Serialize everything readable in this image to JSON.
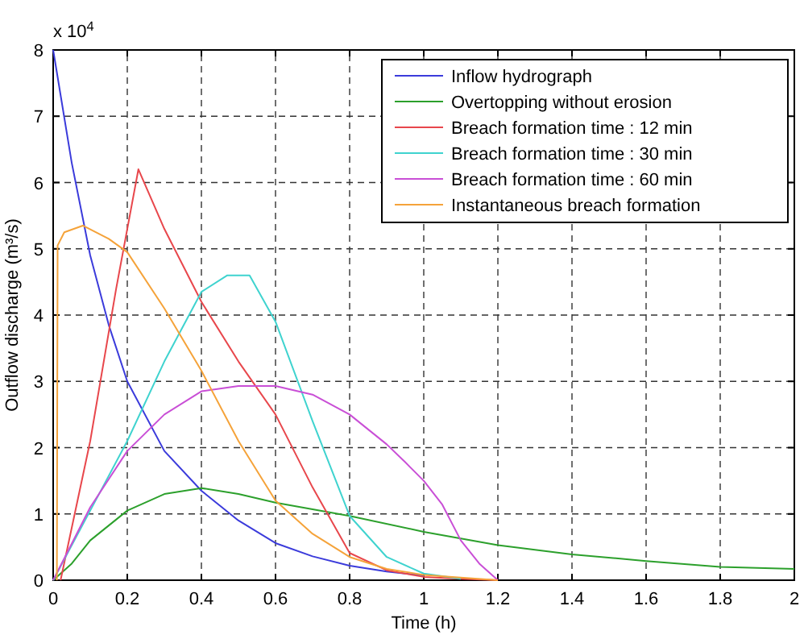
{
  "chart_data": {
    "type": "line",
    "xlabel": "Time (h)",
    "ylabel": "Outflow discharge (m³/s)",
    "annotations": [
      "x 10$^{4}$"
    ],
    "xlim": [
      0,
      2
    ],
    "xticks": [
      0,
      0.2,
      0.4,
      0.6,
      0.8,
      1,
      1.2,
      1.4,
      1.6,
      1.8,
      2
    ],
    "ylim": [
      0,
      8
    ],
    "yticks": [
      0,
      1,
      2,
      3,
      4,
      5,
      6,
      7,
      8
    ],
    "grid": true,
    "legend": "top right",
    "line_style": "solid",
    "marker": "none",
    "series": [
      {
        "name": "Inflow hydrograph",
        "color": "#3b3bdb",
        "x": [
          0,
          0.05,
          0.1,
          0.15,
          0.2,
          0.3,
          0.4,
          0.5,
          0.6,
          0.7,
          0.8,
          0.9,
          1
        ],
        "values": [
          8,
          6.3,
          4.9,
          3.85,
          3,
          1.95,
          1.35,
          0.9,
          0.56,
          0.36,
          0.22,
          0.13,
          0.07
        ]
      },
      {
        "name": "Overtopping without erosion",
        "color": "#2ca02c",
        "x": [
          0,
          0.05,
          0.1,
          0.2,
          0.3,
          0.4,
          0.5,
          0.6,
          0.7,
          0.8,
          1,
          1.2,
          1.4,
          1.6,
          1.8,
          2
        ],
        "values": [
          0,
          0.25,
          0.6,
          1.05,
          1.3,
          1.39,
          1.3,
          1.17,
          1.07,
          0.97,
          0.73,
          0.53,
          0.39,
          0.29,
          0.2,
          0.17
        ]
      },
      {
        "name": "Breach formation time : 12 min",
        "color": "#e8474c",
        "x": [
          0.02,
          0.1,
          0.17,
          0.23,
          0.3,
          0.4,
          0.5,
          0.6,
          0.7,
          0.8,
          0.9,
          1,
          1.1,
          1.2
        ],
        "values": [
          0,
          2.1,
          4.4,
          6.2,
          5.3,
          4.2,
          3.3,
          2.5,
          1.4,
          0.41,
          0.15,
          0.05,
          0.02,
          0
        ]
      },
      {
        "name": "Breach formation time : 30 min",
        "color": "#3fd3cf",
        "x": [
          0,
          0.1,
          0.2,
          0.3,
          0.4,
          0.47,
          0.53,
          0.6,
          0.7,
          0.8,
          0.9,
          1,
          1.1
        ],
        "values": [
          0,
          1.05,
          2.1,
          3.3,
          4.35,
          4.6,
          4.6,
          3.9,
          2.4,
          0.97,
          0.35,
          0.1,
          0.02
        ]
      },
      {
        "name": "Breach formation time : 60 min",
        "color": "#c94fd6",
        "x": [
          0,
          0.1,
          0.2,
          0.3,
          0.4,
          0.5,
          0.6,
          0.7,
          0.8,
          0.9,
          0.95,
          1,
          1.05,
          1.1,
          1.15,
          1.2
        ],
        "values": [
          0,
          1.1,
          1.95,
          2.5,
          2.85,
          2.93,
          2.93,
          2.8,
          2.5,
          2.05,
          1.78,
          1.5,
          1.14,
          0.6,
          0.25,
          0
        ]
      },
      {
        "name": "Instantaneous breach formation",
        "color": "#f5a33a",
        "x": [
          0.01,
          0.012,
          0.03,
          0.08,
          0.15,
          0.2,
          0.3,
          0.4,
          0.5,
          0.6,
          0.7,
          0.8,
          0.9,
          1,
          1.2
        ],
        "values": [
          0,
          5.05,
          5.25,
          5.35,
          5.15,
          4.95,
          4.1,
          3.16,
          2.1,
          1.2,
          0.7,
          0.35,
          0.17,
          0.08,
          0
        ]
      }
    ]
  }
}
